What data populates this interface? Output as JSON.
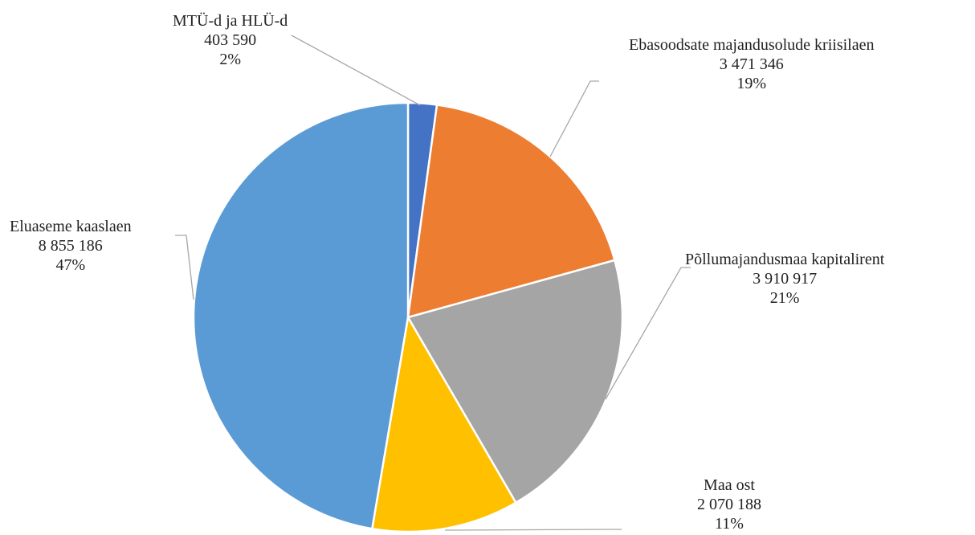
{
  "chart_data": {
    "type": "pie",
    "start_angle_deg": 0,
    "direction": "clockwise",
    "slices": [
      {
        "label": "MTÜ-d ja HLÜ-d",
        "value_text": "403 590",
        "percent_text": "2%",
        "value": 403590,
        "color": "#4472C4"
      },
      {
        "label": "Ebasoodsate majandusolude kriisilaen",
        "value_text": "3 471 346",
        "percent_text": "19%",
        "value": 3471346,
        "color": "#ED7D31"
      },
      {
        "label": "Põllumajandusmaa kapitalirent",
        "value_text": "3 910 917",
        "percent_text": "21%",
        "value": 3910917,
        "color": "#A5A5A5"
      },
      {
        "label": "Maa ost",
        "value_text": "2 070 188",
        "percent_text": "11%",
        "value": 2070188,
        "color": "#FFC000"
      },
      {
        "label": "Eluaseme kaaslaen",
        "value_text": "8 855 186",
        "percent_text": "47%",
        "value": 8855186,
        "color": "#5B9BD5"
      }
    ],
    "leader_line_color": "#A6A6A6",
    "slice_border_color": "#FFFFFF"
  }
}
